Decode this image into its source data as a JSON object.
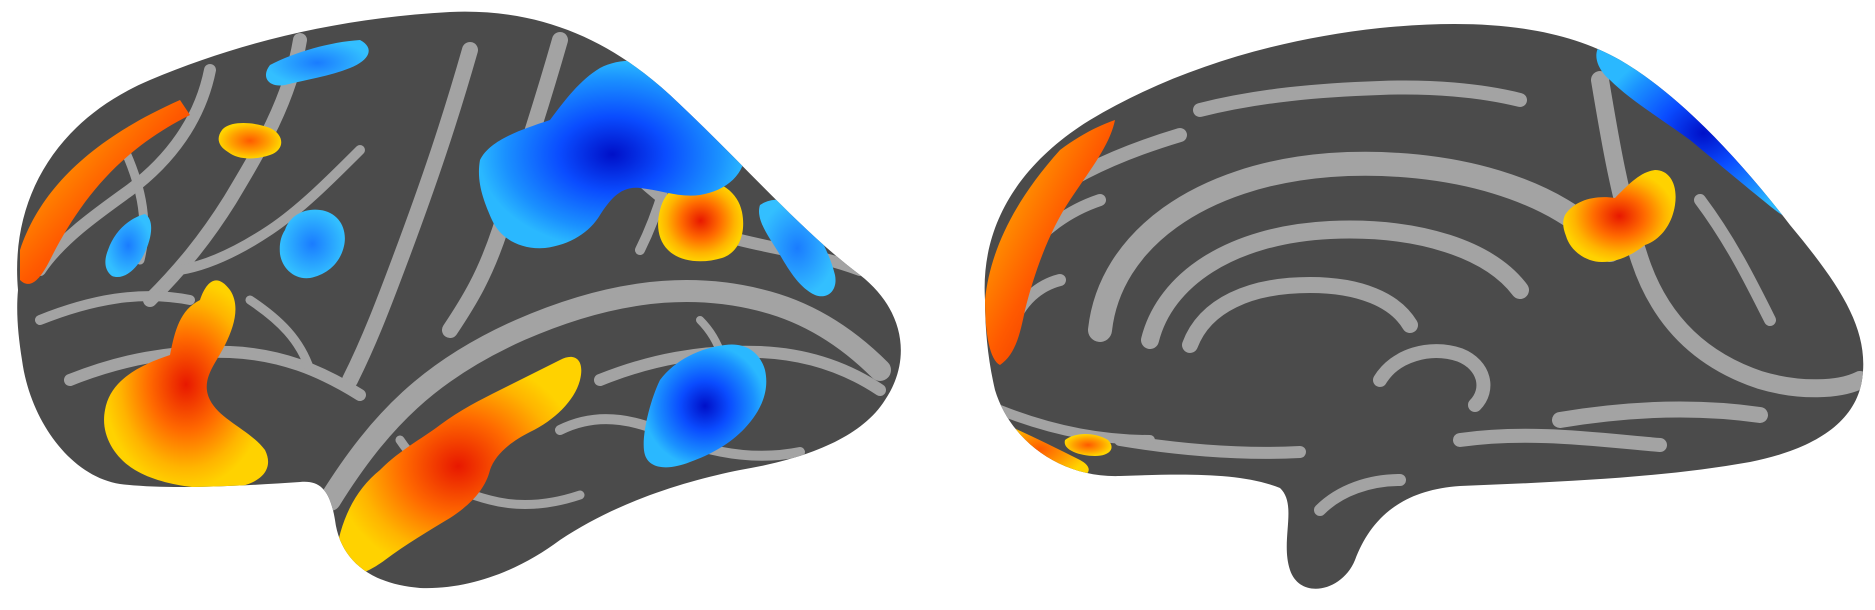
{
  "figure": {
    "views": [
      {
        "name": "lateral",
        "hemisphere": "left"
      },
      {
        "name": "medial",
        "hemisphere": "left"
      }
    ],
    "colors": {
      "background": "#ffffff",
      "sulcus": "#4b4b4b",
      "gyrus": "#a3a3a3",
      "activation_positive": [
        "#ffd200",
        "#ff9a00",
        "#ff4a00",
        "#e81800"
      ],
      "activation_negative": [
        "#2ab4ff",
        "#1478ff",
        "#0032e6",
        "#0010b0"
      ]
    }
  }
}
